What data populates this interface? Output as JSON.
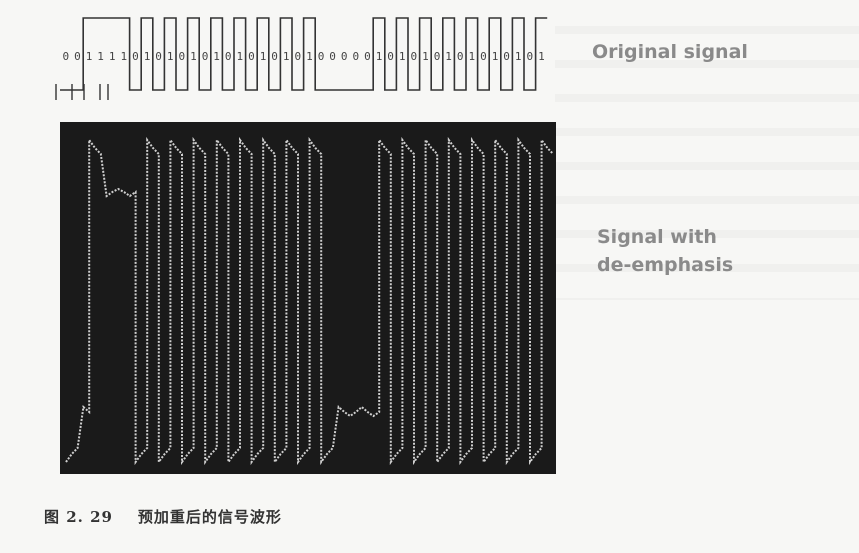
{
  "bits": "001111010101010101010100000101010101010101",
  "labels": {
    "original": "Original signal",
    "deemphasis_line1": "Signal with",
    "deemphasis_line2": "de-emphasis"
  },
  "caption": {
    "figure_number": "图 2. 29",
    "title": "预加重后的信号波形"
  },
  "colors": {
    "scope_background": "#1a1a1a",
    "trace": "#cfcfcf",
    "label": "#8a8a8a"
  }
}
